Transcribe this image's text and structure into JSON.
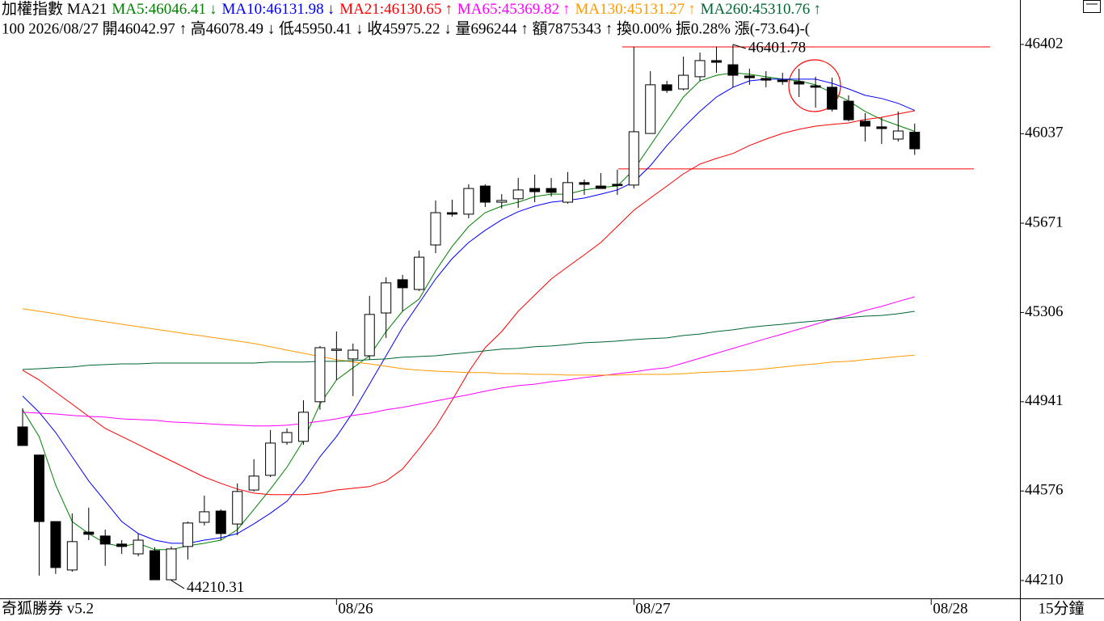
{
  "chart_data": {
    "type": "candlestick",
    "title": "加權指數 MA21",
    "info": "100 2026/08/27 開46042.97 ↑ 高46078.49 ↓ 低45950.41 ↓ 收45975.22 ↓ 量696244 ↑ 額7875343 ↑ 換0.00% 振0.28% 漲(-73.64)-(",
    "app": "奇狐勝券 v5.2",
    "interval": "15分鐘",
    "ylim": [
      44137,
      46425
    ],
    "yticks": [
      44210,
      44576,
      44941,
      45306,
      45671,
      46037,
      46402
    ],
    "xticks": [
      {
        "value": 19,
        "label": "08/26"
      },
      {
        "value": 37,
        "label": "08/27"
      },
      {
        "value": 55,
        "label": "08/28"
      }
    ],
    "up_color": "#ffffff",
    "down_color": "#000000",
    "open": [
      44838,
      44723,
      44451,
      44253,
      44408,
      44392,
      44359,
      44319,
      44332,
      44213,
      44349,
      44448,
      44494,
      44441,
      44580,
      44640,
      44775,
      44779,
      44941,
      45152,
      45116,
      45129,
      45304,
      45440,
      45400,
      45582,
      45714,
      45708,
      45823,
      45757,
      45771,
      45813,
      45813,
      45757,
      45837,
      45823,
      45830,
      45827,
      46038,
      46237,
      46220,
      46270,
      46336,
      46319,
      46273,
      46263,
      46256,
      46250,
      46233,
      46227,
      46170,
      46088,
      46065,
      46015,
      46042.97
    ],
    "high": [
      44914,
      44723,
      44451,
      44484,
      44508,
      44418,
      44375,
      44402,
      44346,
      44349,
      44451,
      44557,
      44501,
      44607,
      44706,
      44825,
      44832,
      44947,
      45169,
      45228,
      45179,
      45374,
      45450,
      45460,
      45559,
      45764,
      45767,
      45830,
      45830,
      45790,
      45856,
      45870,
      45856,
      45880,
      45850,
      45876,
      45890,
      46392,
      46293,
      46253,
      46352,
      46369,
      46392,
      46401.78,
      46303,
      46293,
      46286,
      46303,
      46270,
      46266,
      46194,
      46121,
      46104,
      46128,
      46078.49
    ],
    "low": [
      44762,
      44230,
      44237,
      44246,
      44375,
      44270,
      44319,
      44309,
      44213,
      44210.31,
      44296,
      44435,
      44375,
      44395,
      44574,
      44633,
      44765,
      44765,
      44908,
      45030,
      44964,
      45113,
      45202,
      45311,
      45394,
      45549,
      45698,
      45691,
      45737,
      45731,
      45734,
      45757,
      45780,
      45751,
      45787,
      45813,
      45787,
      45813,
      46038,
      46204,
      46214,
      46253,
      46286,
      46227,
      46237,
      46227,
      46237,
      46187,
      46144,
      46128,
      46088,
      46005,
      45995,
      46005,
      45950.41
    ],
    "close": [
      44762,
      44451,
      44263,
      44369,
      44399,
      44359,
      44349,
      44375,
      44213,
      44339,
      44445,
      44491,
      44402,
      44574,
      44637,
      44772,
      44815,
      44898,
      45162,
      45156,
      45152,
      45298,
      45427,
      45407,
      45532,
      45714,
      45708,
      45813,
      45757,
      45764,
      45807,
      45800,
      45797,
      45837,
      45830,
      45813,
      45827,
      46045,
      46237,
      46214,
      46276,
      46336,
      46329,
      46276,
      46266,
      46256,
      46250,
      46240,
      46227,
      46137,
      46094,
      46068,
      46058,
      46048,
      45975.22
    ],
    "marked_extremes": [
      46401.78,
      44210.31
    ],
    "levels": [
      46392,
      45893
    ],
    "level_color": "#ff0000",
    "series": [
      {
        "label": "MA5:46046.41",
        "arrow": "↓",
        "color": "#008000",
        "values": [
          44908,
          44799,
          44600,
          44451,
          44402,
          44362,
          44349,
          44362,
          44336,
          44336,
          44352,
          44362,
          44375,
          44418,
          44501,
          44584,
          44673,
          44782,
          44931,
          45030,
          45080,
          45129,
          45228,
          45311,
          45361,
          45476,
          45576,
          45658,
          45714,
          45741,
          45757,
          45780,
          45790,
          45790,
          45807,
          45817,
          45823,
          45890,
          45989,
          46088,
          46187,
          46253,
          46276,
          46286,
          46280,
          46270,
          46260,
          46253,
          46237,
          46204,
          46171,
          46128,
          46095,
          46071,
          46046.41
        ]
      },
      {
        "label": "MA10:46131.98",
        "arrow": "↓",
        "color": "#0000ff",
        "values": [
          44964,
          44898,
          44815,
          44716,
          44617,
          44534,
          44451,
          44402,
          44375,
          44362,
          44362,
          44375,
          44385,
          44402,
          44442,
          44485,
          44534,
          44617,
          44716,
          44799,
          44898,
          45013,
          45129,
          45245,
          45344,
          45443,
          45526,
          45592,
          45642,
          45685,
          45718,
          45741,
          45757,
          45764,
          45774,
          45790,
          45807,
          45840,
          45906,
          45989,
          46062,
          46128,
          46187,
          46227,
          46253,
          46260,
          46260,
          46260,
          46260,
          46243,
          46220,
          46194,
          46181,
          46161,
          46131.98
        ]
      },
      {
        "label": "MA21:46130.65",
        "arrow": "↑",
        "color": "#ff0000",
        "values": [
          45070,
          45030,
          44980,
          44931,
          44881,
          44832,
          44799,
          44766,
          44732,
          44699,
          44666,
          44633,
          44607,
          44584,
          44567,
          44561,
          44561,
          44561,
          44567,
          44580,
          44587,
          44594,
          44617,
          44666,
          44749,
          44838,
          44947,
          45063,
          45162,
          45228,
          45311,
          45377,
          45443,
          45493,
          45542,
          45592,
          45658,
          45724,
          45774,
          45823,
          45873,
          45913,
          45936,
          45956,
          45989,
          46015,
          46038,
          46055,
          46068,
          46075,
          46081,
          46095,
          46104,
          46118,
          46130.65
        ]
      },
      {
        "label": "MA65:45369.82",
        "arrow": "↑",
        "color": "#ff00ff",
        "values": [
          44898,
          44894,
          44891,
          44885,
          44881,
          44878,
          44871,
          44868,
          44865,
          44858,
          44855,
          44852,
          44848,
          44845,
          44842,
          44842,
          44845,
          44852,
          44861,
          44871,
          44885,
          44894,
          44908,
          44918,
          44931,
          44944,
          44957,
          44970,
          44984,
          44997,
          45007,
          45013,
          45023,
          45030,
          45040,
          45047,
          45056,
          45063,
          45073,
          45080,
          45099,
          45119,
          45139,
          45159,
          45179,
          45199,
          45218,
          45238,
          45258,
          45278,
          45294,
          45314,
          45331,
          45351,
          45369.82
        ]
      },
      {
        "label": "MA130:45131.27",
        "arrow": "↑",
        "color": "#ff9900",
        "values": [
          45321,
          45311,
          45301,
          45288,
          45278,
          45268,
          45258,
          45248,
          45238,
          45228,
          45218,
          45209,
          45199,
          45189,
          45179,
          45166,
          45152,
          45139,
          45126,
          45113,
          45103,
          45096,
          45086,
          45076,
          45070,
          45066,
          45063,
          45060,
          45060,
          45056,
          45056,
          45053,
          45053,
          45050,
          45050,
          45050,
          45050,
          45053,
          45053,
          45053,
          45056,
          45060,
          45063,
          45066,
          45070,
          45076,
          45083,
          45090,
          45096,
          45103,
          45106,
          45113,
          45119,
          45126,
          45131.27
        ]
      },
      {
        "label": "MA260:45310.76",
        "arrow": "↑",
        "color": "#006633",
        "values": [
          45073,
          45076,
          45080,
          45083,
          45090,
          45093,
          45096,
          45096,
          45099,
          45099,
          45099,
          45099,
          45099,
          45099,
          45099,
          45103,
          45103,
          45103,
          45106,
          45106,
          45109,
          45113,
          45116,
          45123,
          45126,
          45129,
          45136,
          45142,
          45149,
          45156,
          45159,
          45166,
          45169,
          45175,
          45182,
          45185,
          45189,
          45195,
          45199,
          45202,
          45212,
          45218,
          45228,
          45235,
          45245,
          45252,
          45258,
          45265,
          45271,
          45278,
          45285,
          45291,
          45294,
          45301,
          45310.76
        ]
      }
    ]
  }
}
